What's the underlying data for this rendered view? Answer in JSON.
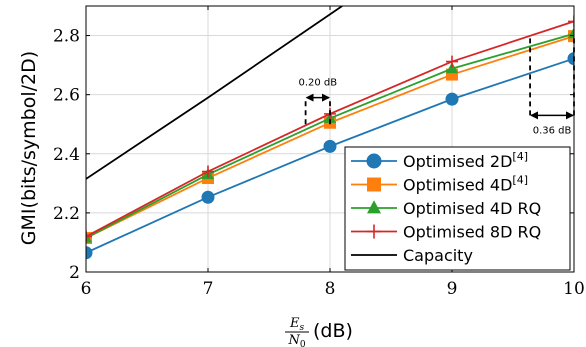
{
  "chart_data": {
    "type": "line",
    "xlabel_unit": "(dB)",
    "xlabel_math": {
      "numerator": "E",
      "numerator_sub": "s",
      "denominator": "N",
      "denominator_sub": "0"
    },
    "ylabel": "GMI(bits/symbol/2D)",
    "xlim": [
      6,
      10
    ],
    "ylim": [
      2.0,
      2.9
    ],
    "xticks": [
      6,
      7,
      8,
      9,
      10
    ],
    "yticks": [
      2,
      2.2,
      2.4,
      2.6,
      2.8
    ],
    "xtick_labels": [
      "6",
      "7",
      "8",
      "9",
      "10"
    ],
    "ytick_labels": [
      "2",
      "2.2",
      "2.4",
      "2.6",
      "2.8"
    ],
    "grid": true,
    "legend_position": "bottom-right",
    "series": [
      {
        "name": "Optimised 2D",
        "sup": "[4]",
        "color": "#1f77b4",
        "marker": "circle",
        "x": [
          6,
          7,
          8,
          9,
          10
        ],
        "y": [
          2.065,
          2.253,
          2.425,
          2.585,
          2.722
        ]
      },
      {
        "name": "Optimised 4D",
        "sup": "[4]",
        "color": "#ff7f0e",
        "marker": "square",
        "x": [
          6,
          7,
          8,
          9,
          10
        ],
        "y": [
          2.115,
          2.318,
          2.505,
          2.668,
          2.798
        ]
      },
      {
        "name": "Optimised 4D RQ",
        "sup": "",
        "color": "#2ca02c",
        "marker": "triangle",
        "x": [
          6,
          7,
          8,
          9,
          10
        ],
        "y": [
          2.115,
          2.33,
          2.52,
          2.688,
          2.806
        ]
      },
      {
        "name": "Optimised 8D RQ",
        "sup": "",
        "color": "#d62728",
        "marker": "plus",
        "x": [
          6,
          7,
          8,
          9,
          10
        ],
        "y": [
          2.12,
          2.34,
          2.535,
          2.712,
          2.848
        ]
      },
      {
        "name": "Capacity",
        "sup": "",
        "color": "#000000",
        "marker": "none",
        "x": [
          6,
          7,
          8.1
        ],
        "y": [
          2.315,
          2.59,
          2.9
        ]
      }
    ],
    "annotations": [
      {
        "text": "0.20 dB",
        "x_from": 7.8,
        "x_to": 8.0,
        "y_arrow": 2.59,
        "y_bottom": 2.5,
        "y_top": 2.59
      },
      {
        "text": "0.36 dB",
        "x_from": 9.64,
        "x_to": 10.0,
        "y_arrow": 2.53,
        "y_bottom": 2.53,
        "y_top": 2.8
      }
    ]
  }
}
